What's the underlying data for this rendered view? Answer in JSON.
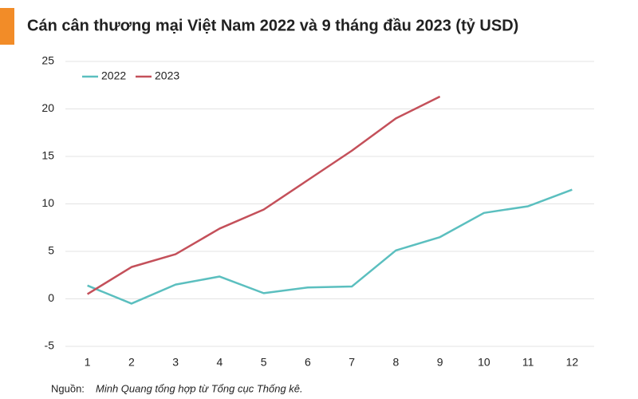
{
  "chart_data": {
    "type": "line",
    "title": "Cán cân thương mại Việt Nam 2022 và 9 tháng đầu 2023 (tỷ USD)",
    "categories": [
      1,
      2,
      3,
      4,
      5,
      6,
      7,
      8,
      9,
      10,
      11,
      12
    ],
    "series": [
      {
        "name": "2022",
        "color": "#5bbfbf",
        "values": [
          1.4,
          -0.5,
          1.5,
          2.35,
          0.6,
          1.2,
          1.3,
          5.1,
          6.5,
          9.05,
          9.75,
          11.5
        ]
      },
      {
        "name": "2023",
        "color": "#c4505a",
        "values": [
          0.5,
          3.35,
          4.7,
          7.4,
          9.4,
          12.5,
          15.6,
          19.0,
          21.3,
          null,
          null,
          null
        ]
      }
    ],
    "ylim": [
      -5,
      25
    ],
    "yticks": [
      -5,
      0,
      5,
      10,
      15,
      20,
      25
    ],
    "grid": true,
    "legend": "top-left",
    "source": {
      "label": "Nguồn:",
      "text": "Minh Quang tổng hợp từ Tổng cục Thống kê."
    }
  }
}
